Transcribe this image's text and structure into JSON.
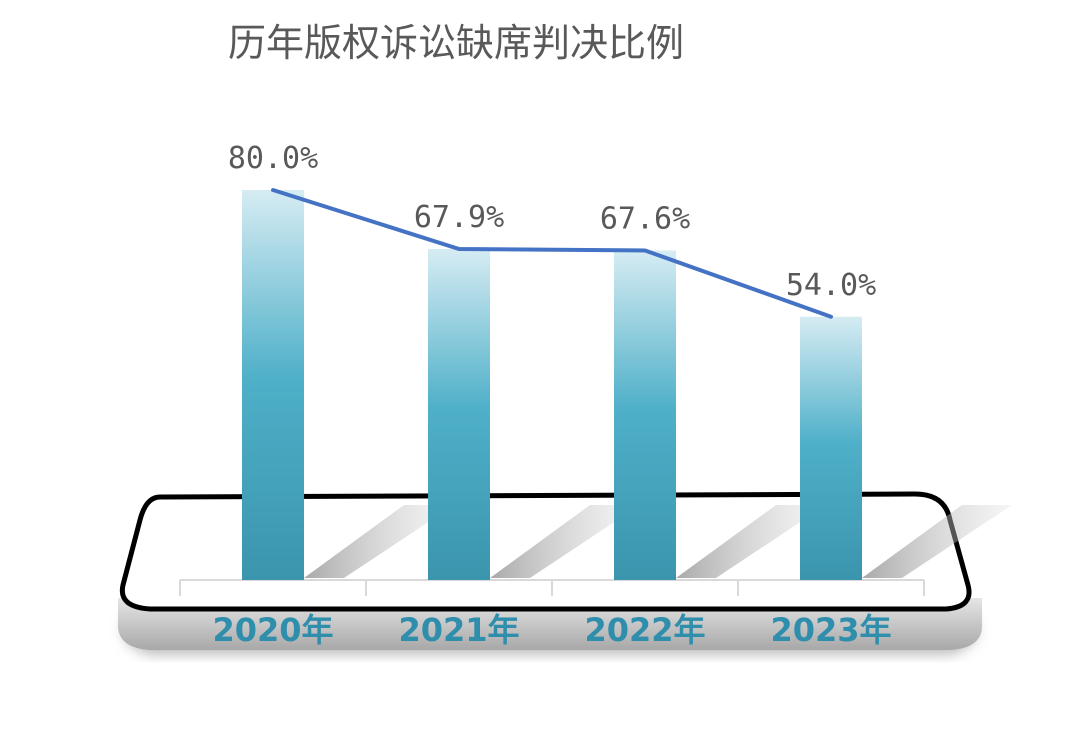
{
  "chart_data": {
    "type": "bar",
    "title": "历年版权诉讼缺席判决比例",
    "categories": [
      "2020年",
      "2021年",
      "2022年",
      "2023年"
    ],
    "values": [
      80.0,
      67.9,
      67.6,
      54.0
    ],
    "value_labels": [
      "80.0%",
      "67.9%",
      "67.6%",
      "54.0%"
    ],
    "trend_line": true,
    "xlabel": "",
    "ylabel": "",
    "ylim": [
      0,
      85
    ],
    "grid": false,
    "legend": "none"
  },
  "colors": {
    "bar_top": "#D6ECF3",
    "bar_mid": "#4FB0C9",
    "bar_bottom": "#3A95AD",
    "trend_line": "#4472C4",
    "category_text": "#2E8EAC",
    "label_text": "#595959"
  }
}
